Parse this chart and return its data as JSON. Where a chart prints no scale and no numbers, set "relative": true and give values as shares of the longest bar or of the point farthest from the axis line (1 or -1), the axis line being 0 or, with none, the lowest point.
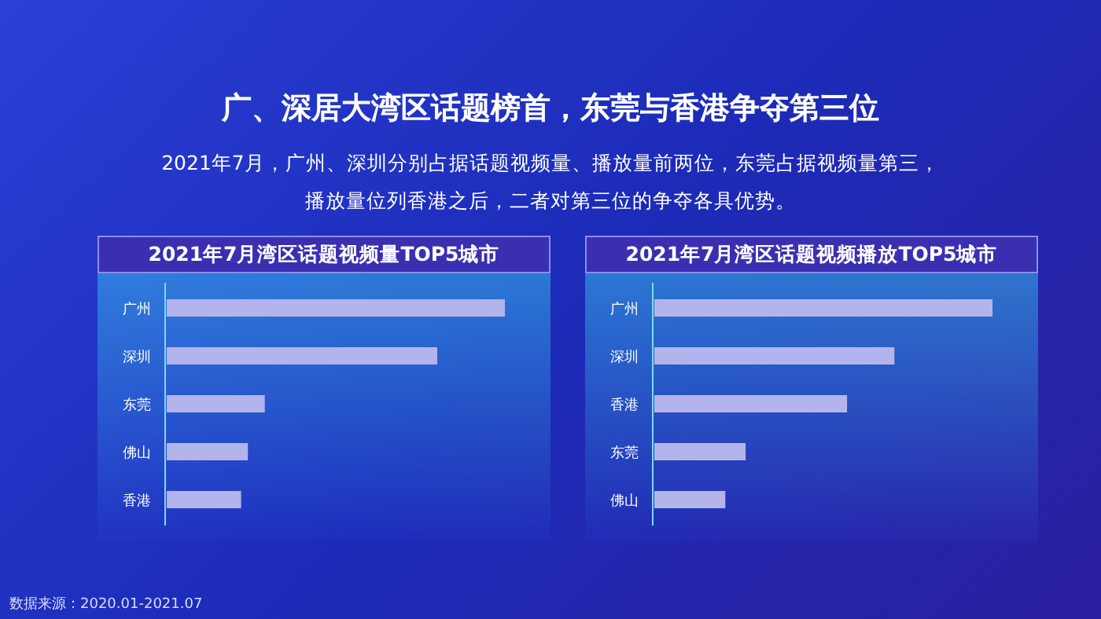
{
  "chart_data": [
    {
      "type": "other",
      "title": "广、深居大湾区话题榜首，东莞与香港争夺第三位",
      "subtitle": "2021年7月，广州、深圳分别占据话题视频量、播放量前两位，东莞占据视频量第三，播放量位列香港之后，二者对第三位的争夺各具优势。",
      "annotations": [
        "数据来源：2020.01-2021.07"
      ]
    },
    {
      "type": "bar",
      "orientation": "horizontal",
      "relative": true,
      "title": "2021年7月湾区话题视频量TOP5城市",
      "categories": [
        "广州",
        "深圳",
        "东莞",
        "佛山",
        "香港"
      ],
      "values": [
        1,
        0.8,
        0.29,
        0.24,
        0.22
      ],
      "color": "#b4b4ec"
    },
    {
      "type": "bar",
      "orientation": "horizontal",
      "relative": true,
      "title": "2021年7月湾区话题视频播放TOP5城市",
      "categories": [
        "广州",
        "深圳",
        "香港",
        "东莞",
        "佛山"
      ],
      "values": [
        1,
        0.71,
        0.57,
        0.27,
        0.21
      ],
      "color": "#b4b4ec"
    }
  ]
}
